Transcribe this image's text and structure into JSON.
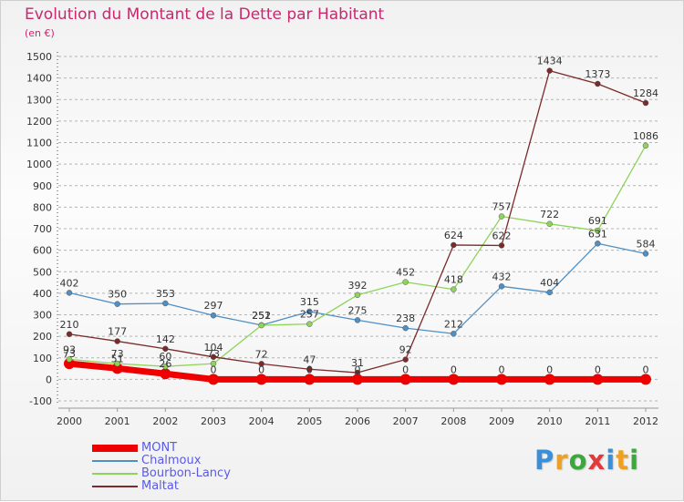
{
  "chart_data": {
    "type": "line",
    "title": "Evolution du Montant de la Dette par Habitant",
    "subtitle": "(en €)",
    "x": [
      "2000",
      "2001",
      "2002",
      "2003",
      "2004",
      "2005",
      "2006",
      "2007",
      "2008",
      "2009",
      "2010",
      "2011",
      "2012"
    ],
    "ylim": [
      -100,
      1500
    ],
    "yticks": [
      "-100",
      "0",
      "100",
      "200",
      "300",
      "400",
      "500",
      "600",
      "700",
      "800",
      "900",
      "1000",
      "1100",
      "1200",
      "1300",
      "1400",
      "1500"
    ],
    "grid": "dashed horizontal",
    "legend_position": "bottom-left",
    "series": [
      {
        "name": "MONT",
        "color": "#ee0000",
        "values": [
          73,
          51,
          26,
          0,
          0,
          0,
          0,
          0,
          0,
          0,
          0,
          0,
          0
        ]
      },
      {
        "name": "Chalmoux",
        "color": "#4f8fc4",
        "values": [
          402,
          350,
          353,
          297,
          252,
          315,
          275,
          238,
          212,
          432,
          404,
          631,
          584
        ]
      },
      {
        "name": "Bourbon-Lancy",
        "color": "#8fd45a",
        "values": [
          93,
          73,
          60,
          73,
          251,
          257,
          392,
          452,
          418,
          757,
          722,
          691,
          1086
        ]
      },
      {
        "name": "Maltat",
        "color": "#7a2b2b",
        "values": [
          210,
          177,
          142,
          104,
          72,
          47,
          31,
          92,
          624,
          622,
          1434,
          1373,
          1284
        ]
      }
    ]
  },
  "brand": {
    "letters": [
      "P",
      "r",
      "o",
      "x",
      "i",
      "t",
      "i"
    ],
    "colors": [
      "#3a8fd8",
      "#f0a020",
      "#3aa83a",
      "#e03a3a",
      "#3a8fd8",
      "#f0a020",
      "#3aa83a"
    ]
  }
}
